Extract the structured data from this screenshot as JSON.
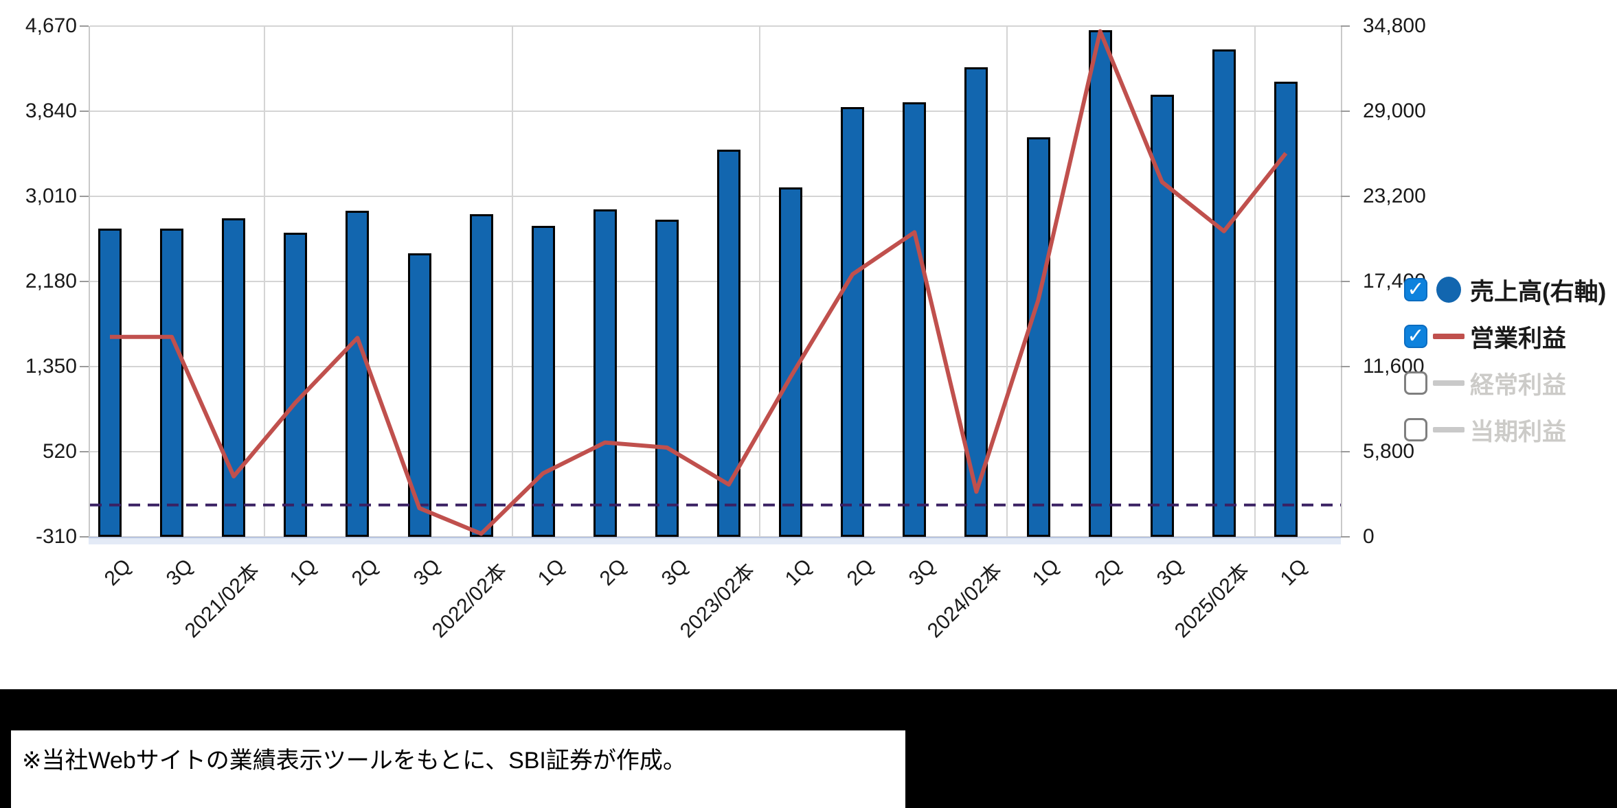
{
  "chart_data": {
    "type": "bar+line",
    "categories": [
      "2Q",
      "3Q",
      "2021/02本",
      "1Q",
      "2Q",
      "3Q",
      "2022/02本",
      "1Q",
      "2Q",
      "3Q",
      "2023/02本",
      "1Q",
      "2Q",
      "3Q",
      "2024/02本",
      "1Q",
      "2Q",
      "3Q",
      "2025/02本",
      "1Q"
    ],
    "series": [
      {
        "name": "売上高(右軸)",
        "type": "bar",
        "axis": "right",
        "values": [
          21000,
          21000,
          21700,
          20700,
          22200,
          19300,
          22000,
          21200,
          22300,
          21600,
          26400,
          23800,
          29300,
          29600,
          32000,
          27200,
          34500,
          30100,
          33200,
          31000
        ]
      },
      {
        "name": "営業利益",
        "type": "line",
        "axis": "left",
        "values": [
          1640,
          1640,
          280,
          1000,
          1630,
          -30,
          -280,
          310,
          610,
          560,
          200,
          1250,
          2250,
          2660,
          130,
          2000,
          4620,
          3150,
          2670,
          3430
        ]
      }
    ],
    "left_axis": {
      "min": -310,
      "max": 4670,
      "step": 830,
      "tick_labels": [
        "-310",
        "520",
        "1,350",
        "2,180",
        "3,010",
        "3,840",
        "4,670"
      ]
    },
    "right_axis": {
      "min": 0,
      "max": 34800,
      "step": 5800,
      "tick_labels": [
        "0",
        "5,800",
        "11,600",
        "17,400",
        "23,200",
        "29,000",
        "34,800"
      ]
    },
    "zero_reference_line": 0,
    "grid": true,
    "year_boundary_gridlines_after": [
      "2021/02本",
      "2022/02本",
      "2023/02本",
      "2024/02本",
      "2025/02本"
    ],
    "legend_position": "right"
  },
  "legend": {
    "items": [
      {
        "label": "売上高(右軸)",
        "checked": true,
        "swatch": "circle",
        "color": "#1266af"
      },
      {
        "label": "営業利益",
        "checked": true,
        "swatch": "line",
        "color": "#c0504d"
      },
      {
        "label": "経常利益",
        "checked": false,
        "swatch": "line",
        "color": "#c9c9c9"
      },
      {
        "label": "当期利益",
        "checked": false,
        "swatch": "line",
        "color": "#c9c9c9"
      }
    ],
    "check_icon": "✓"
  },
  "note": {
    "text": "※当社Webサイトの業績表示ツールをもとに、SBI証券が作成。"
  },
  "colors": {
    "bar_fill": "#1266af",
    "bar_border": "#000000",
    "line": "#c0504d",
    "zero_line": "#3a2163",
    "grid": "#d4d4d4",
    "checkbox_on": "#0e82dd",
    "inactive_gray": "#c9c9c9",
    "axis_text": "#1a1a1a"
  }
}
